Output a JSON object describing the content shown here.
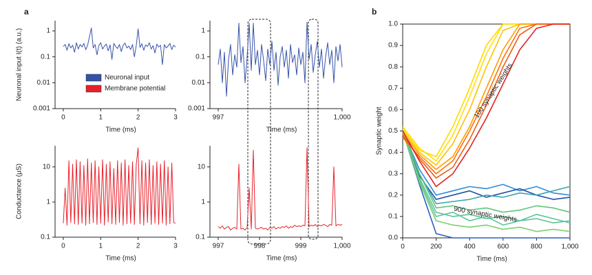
{
  "chart_data": [
    {
      "type": "line",
      "label": "a",
      "log_y": true,
      "x_label": "Time (ms)",
      "y_label": "Neuronal input I(t) (a.u.)",
      "xlim": [
        -0.22,
        3
      ],
      "xticks": [
        0,
        1,
        2,
        3
      ],
      "ylim": [
        0.001,
        2.5
      ],
      "yticks": [
        0.001,
        0.01,
        0.1,
        1
      ],
      "legend": [
        {
          "name": "Neuronal input",
          "color": "#3552a8"
        },
        {
          "name": "Membrane potential",
          "color": "#e8202a"
        }
      ],
      "x": [
        0,
        0.05,
        0.1,
        0.15,
        0.2,
        0.25,
        0.3,
        0.35,
        0.4,
        0.45,
        0.5,
        0.55,
        0.6,
        0.65,
        0.7,
        0.75,
        0.8,
        0.85,
        0.9,
        0.95,
        1,
        1.05,
        1.1,
        1.15,
        1.2,
        1.25,
        1.3,
        1.35,
        1.4,
        1.45,
        1.5,
        1.55,
        1.6,
        1.65,
        1.7,
        1.75,
        1.8,
        1.85,
        1.9,
        1.95,
        2,
        2.05,
        2.1,
        2.15,
        2.2,
        2.25,
        2.3,
        2.35,
        2.4,
        2.45,
        2.5,
        2.55,
        2.6,
        2.65,
        2.7,
        2.75,
        2.8,
        2.85,
        2.9,
        2.95,
        3
      ],
      "series": [
        {
          "color": "#3552a8",
          "values": [
            0.25,
            0.3,
            0.18,
            0.32,
            0.22,
            0.28,
            0.15,
            0.35,
            0.2,
            0.3,
            0.24,
            0.33,
            0.19,
            0.28,
            0.6,
            1.3,
            0.22,
            0.3,
            0.12,
            0.27,
            0.35,
            0.2,
            0.26,
            0.31,
            0.17,
            0.29,
            0.08,
            0.33,
            0.25,
            0.21,
            0.3,
            0.16,
            0.28,
            0.34,
            0.22,
            0.26,
            0.19,
            0.3,
            0.1,
            0.27,
            1.2,
            0.23,
            0.32,
            0.18,
            0.29,
            0.25,
            0.35,
            0.2,
            0.27,
            0.14,
            0.31,
            0.24,
            0.28,
            0.05,
            0.3,
            0.22,
            0.26,
            0.33,
            0.19,
            0.28,
            0.24
          ]
        }
      ]
    },
    {
      "type": "line",
      "log_y": true,
      "x_label": "Time (ms)",
      "xlim": [
        996.8,
        1000
      ],
      "xticks": [
        997,
        {
          "value": 1000,
          "label": "1,000"
        }
      ],
      "ylim": [
        0.001,
        2.5
      ],
      "yticks": [
        0.001,
        0.01,
        0.1,
        1
      ],
      "x": [
        997,
        997.05,
        997.1,
        997.15,
        997.2,
        997.25,
        997.3,
        997.35,
        997.4,
        997.45,
        997.5,
        997.55,
        997.6,
        997.65,
        997.7,
        997.75,
        997.8,
        997.85,
        997.9,
        997.95,
        998,
        998.05,
        998.1,
        998.15,
        998.2,
        998.25,
        998.3,
        998.35,
        998.4,
        998.45,
        998.5,
        998.55,
        998.6,
        998.65,
        998.7,
        998.75,
        998.8,
        998.85,
        998.9,
        998.95,
        999,
        999.05,
        999.1,
        999.15,
        999.2,
        999.25,
        999.3,
        999.35,
        999.4,
        999.45,
        999.5,
        999.55,
        999.6,
        999.65,
        999.7,
        999.75,
        999.8,
        999.85,
        999.9,
        999.95,
        1000
      ],
      "series": [
        {
          "color": "#3552a8",
          "values": [
            0.05,
            0.2,
            0.01,
            0.15,
            0.003,
            0.08,
            0.3,
            0.02,
            0.12,
            0.04,
            2,
            0.06,
            0.25,
            0.01,
            0.1,
            2,
            0.03,
            2,
            0.05,
            0.18,
            0.02,
            0.3,
            0.07,
            0.012,
            0.2,
            0.05,
            0.4,
            0.03,
            0.15,
            0.008,
            0.1,
            0.25,
            0.04,
            0.18,
            0.015,
            0.3,
            0.06,
            0.12,
            0.02,
            0.22,
            0.05,
            0.15,
            0.01,
            2.2,
            0.08,
            0.3,
            0.025,
            0.12,
            0.4,
            0.04,
            0.2,
            0.015,
            0.1,
            0.35,
            0.05,
            0.18,
            0.01,
            0.25,
            0.07,
            0.3,
            0.04
          ]
        }
      ]
    },
    {
      "type": "line",
      "log_y": true,
      "x_label": "Time (ms)",
      "y_label": "Conductance (μS)",
      "xlim": [
        -0.22,
        3
      ],
      "xticks": [
        0,
        1,
        2,
        3
      ],
      "ylim": [
        0.1,
        40
      ],
      "yticks": [
        0.1,
        1,
        10
      ],
      "x": [
        0,
        0.05,
        0.1,
        0.15,
        0.2,
        0.25,
        0.3,
        0.35,
        0.4,
        0.45,
        0.5,
        0.55,
        0.6,
        0.65,
        0.7,
        0.75,
        0.8,
        0.85,
        0.9,
        0.95,
        1,
        1.05,
        1.1,
        1.15,
        1.2,
        1.25,
        1.3,
        1.35,
        1.4,
        1.45,
        1.5,
        1.55,
        1.6,
        1.65,
        1.7,
        1.75,
        1.8,
        1.85,
        1.9,
        1.95,
        2,
        2.05,
        2.1,
        2.15,
        2.2,
        2.25,
        2.3,
        2.35,
        2.4,
        2.45,
        2.5,
        2.55,
        2.6,
        2.65,
        2.7,
        2.75,
        2.8,
        2.85,
        2.9,
        2.95,
        3
      ],
      "series": [
        {
          "color": "#e8202a",
          "values": [
            0.25,
            2.5,
            0.22,
            15,
            0.26,
            12,
            0.24,
            16,
            0.23,
            14,
            0.25,
            11,
            0.22,
            17,
            0.24,
            13,
            0.26,
            15,
            0.23,
            10,
            0.25,
            16,
            0.22,
            12,
            0.27,
            14,
            0.24,
            9,
            0.23,
            15,
            0.26,
            13,
            0.22,
            16,
            0.24,
            11,
            0.25,
            14,
            0.23,
            12,
            35,
            0.24,
            15,
            0.22,
            13,
            0.26,
            16,
            0.23,
            11,
            0.25,
            14,
            0.23,
            12,
            0.25,
            15,
            0.22,
            10,
            0.24,
            13,
            0.26,
            0.25
          ]
        }
      ]
    },
    {
      "type": "line",
      "log_y": true,
      "x_label": "Time (ms)",
      "xlim": [
        996.8,
        1000
      ],
      "xticks": [
        997,
        998,
        999,
        {
          "value": 1000,
          "label": "1,000"
        }
      ],
      "ylim": [
        0.1,
        40
      ],
      "yticks": [
        0.1,
        1,
        10
      ],
      "x": [
        997,
        997.05,
        997.1,
        997.15,
        997.2,
        997.25,
        997.3,
        997.35,
        997.4,
        997.45,
        997.5,
        997.55,
        997.6,
        997.65,
        997.7,
        997.75,
        997.8,
        997.85,
        997.9,
        997.95,
        998,
        998.05,
        998.1,
        998.15,
        998.2,
        998.25,
        998.3,
        998.35,
        998.4,
        998.45,
        998.5,
        998.55,
        998.6,
        998.65,
        998.7,
        998.75,
        998.8,
        998.85,
        998.9,
        998.95,
        999,
        999.05,
        999.1,
        999.15,
        999.2,
        999.25,
        999.3,
        999.35,
        999.4,
        999.45,
        999.5,
        999.55,
        999.6,
        999.65,
        999.7,
        999.75,
        999.8,
        999.85,
        999.9,
        999.95,
        1000
      ],
      "series": [
        {
          "color": "#e8202a",
          "values": [
            0.2,
            0.18,
            0.21,
            0.17,
            0.19,
            0.2,
            0.16,
            0.18,
            0.19,
            0.17,
            12,
            0.17,
            0.18,
            0.16,
            0.19,
            2.5,
            0.17,
            30,
            0.18,
            0.17,
            0.18,
            0.19,
            0.17,
            0.18,
            0.16,
            0.19,
            0.18,
            0.2,
            0.17,
            0.19,
            0.18,
            0.2,
            0.19,
            0.21,
            0.18,
            0.2,
            0.19,
            0.22,
            0.2,
            0.21,
            0.2,
            0.22,
            0.21,
            35,
            0.2,
            0.22,
            0.21,
            0.23,
            0.2,
            0.22,
            0.21,
            0.23,
            0.22,
            0.2,
            0.23,
            0.22,
            10,
            0.21,
            0.23,
            0.22,
            0.23
          ]
        }
      ]
    },
    {
      "type": "line",
      "label": "b",
      "frame": true,
      "x_label": "Time (ms)",
      "y_label": "Synaptic weight",
      "annotations": [
        "100 synaptic weights",
        "900 synaptic weights"
      ],
      "xlim": [
        0,
        1000
      ],
      "xticks": [
        0,
        200,
        400,
        600,
        800,
        {
          "value": 1000,
          "label": "1,000"
        }
      ],
      "ylim": [
        0,
        1
      ],
      "yticks": [
        {
          "value": 0,
          "label": "0.0"
        },
        0.1,
        0.2,
        0.3,
        0.4,
        0.5,
        0.6,
        0.7,
        0.8,
        0.9,
        {
          "value": 1,
          "label": "1.0"
        }
      ],
      "x": [
        0,
        100,
        200,
        300,
        400,
        500,
        600,
        700,
        800,
        900,
        1000
      ],
      "series": [
        {
          "color": "#2a5fc0",
          "values": [
            0.5,
            0.25,
            0.02,
            0,
            0,
            0,
            0,
            0,
            0,
            0,
            0
          ]
        },
        {
          "color": "#2e8bd6",
          "values": [
            0.5,
            0.32,
            0.2,
            0.22,
            0.24,
            0.23,
            0.25,
            0.22,
            0.24,
            0.21,
            0.2
          ]
        },
        {
          "color": "#1f4fa8",
          "values": [
            0.5,
            0.29,
            0.18,
            0.2,
            0.22,
            0.19,
            0.21,
            0.23,
            0.2,
            0.18,
            0.19
          ]
        },
        {
          "color": "#3aa6b0",
          "values": [
            0.5,
            0.3,
            0.16,
            0.17,
            0.18,
            0.2,
            0.19,
            0.21,
            0.2,
            0.22,
            0.24
          ]
        },
        {
          "color": "#62c47a",
          "values": [
            0.51,
            0.3,
            0.14,
            0.15,
            0.13,
            0.14,
            0.12,
            0.13,
            0.15,
            0.14,
            0.12
          ]
        },
        {
          "color": "#5fc090",
          "values": [
            0.49,
            0.28,
            0.12,
            0.1,
            0.11,
            0.09,
            0.1,
            0.08,
            0.09,
            0.07,
            0.08
          ]
        },
        {
          "color": "#5ac4a0",
          "values": [
            0.5,
            0.27,
            0.1,
            0.12,
            0.08,
            0.1,
            0.06,
            0.08,
            0.11,
            0.09,
            0.07
          ]
        },
        {
          "color": "#7ccf6a",
          "values": [
            0.5,
            0.26,
            0.08,
            0.06,
            0.05,
            0.06,
            0.04,
            0.05,
            0.03,
            0.04,
            0.03
          ]
        },
        {
          "color": "#ffe000",
          "values": [
            0.52,
            0.42,
            0.36,
            0.48,
            0.66,
            0.86,
            1,
            1,
            1,
            1,
            1
          ]
        },
        {
          "color": "#ffd800",
          "values": [
            0.51,
            0.41,
            0.38,
            0.52,
            0.7,
            0.9,
            1,
            1,
            1,
            1,
            1
          ]
        },
        {
          "color": "#ffc000",
          "values": [
            0.5,
            0.4,
            0.34,
            0.44,
            0.6,
            0.8,
            0.97,
            1,
            1,
            1,
            1
          ]
        },
        {
          "color": "#ff9a00",
          "values": [
            0.49,
            0.39,
            0.32,
            0.38,
            0.52,
            0.7,
            0.88,
            1,
            1,
            1,
            1
          ]
        },
        {
          "color": "#ff7000",
          "values": [
            0.47,
            0.38,
            0.3,
            0.36,
            0.5,
            0.66,
            0.84,
            0.98,
            1,
            1,
            1
          ]
        },
        {
          "color": "#f05a10",
          "values": [
            0.48,
            0.37,
            0.28,
            0.33,
            0.46,
            0.62,
            0.8,
            0.95,
            1,
            1,
            1
          ]
        },
        {
          "color": "#e02020",
          "values": [
            0.5,
            0.36,
            0.24,
            0.3,
            0.42,
            0.56,
            0.72,
            0.88,
            0.98,
            1,
            1
          ]
        }
      ]
    }
  ]
}
